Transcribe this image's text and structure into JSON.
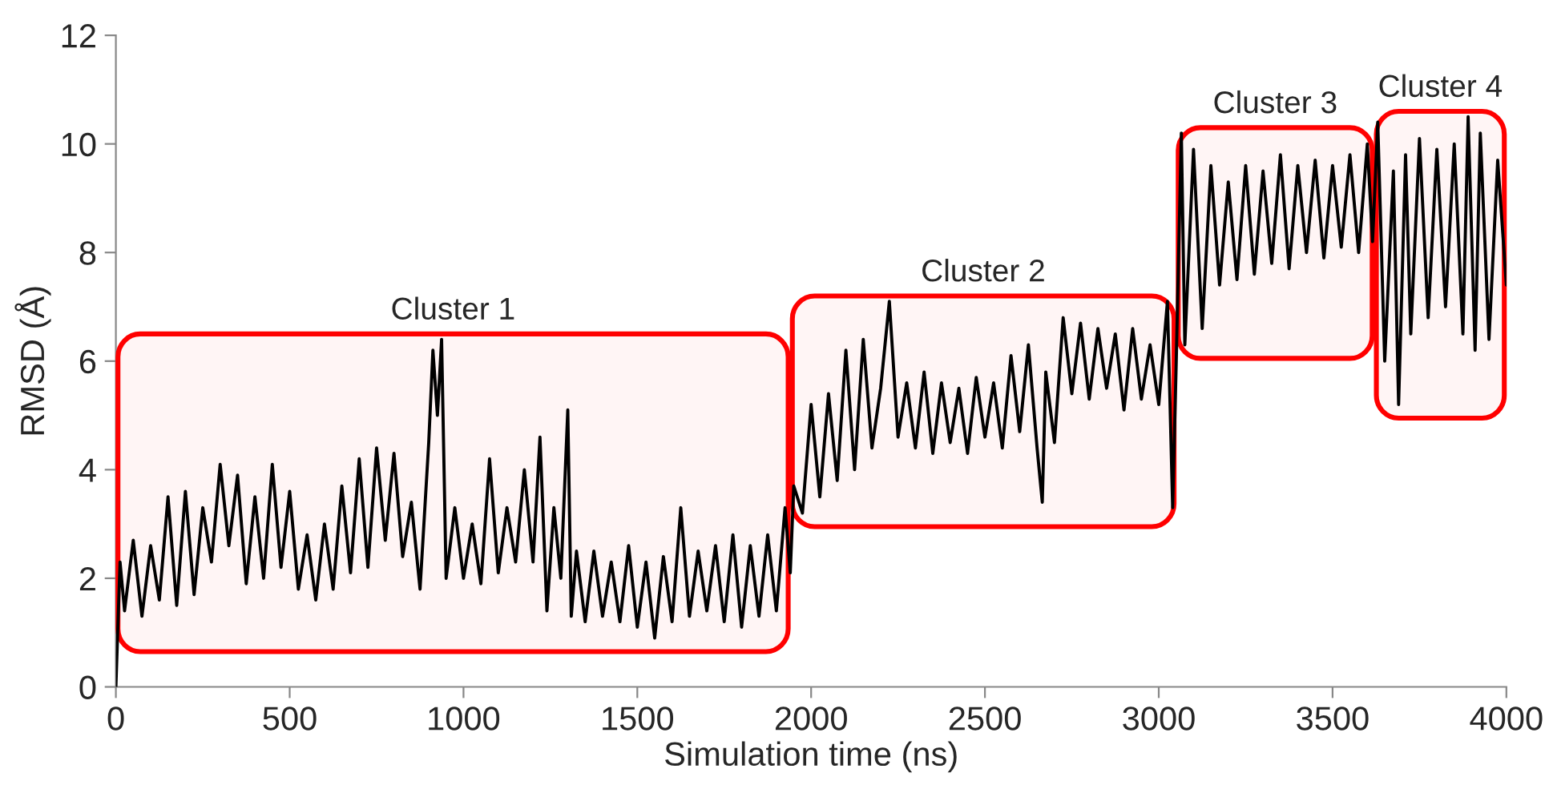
{
  "chart_data": {
    "type": "line",
    "xlabel": "Simulation time (ns)",
    "ylabel": "RMSD (Å)",
    "xlim": [
      0,
      4000
    ],
    "xticks": [
      0,
      500,
      1000,
      1500,
      2000,
      2500,
      3000,
      3500,
      4000
    ],
    "ylim": [
      0,
      12
    ],
    "yticks": [
      0,
      2,
      4,
      6,
      8,
      10,
      12
    ],
    "grid": false,
    "legend": false,
    "bands": [
      {
        "axis": "x",
        "from": 0,
        "to": 1940,
        "label": "Cluster 1",
        "color": "#ff0000"
      },
      {
        "axis": "x",
        "from": 1940,
        "to": 3050,
        "label": "Cluster 2",
        "color": "#ff0000"
      },
      {
        "axis": "x",
        "from": 3050,
        "to": 3620,
        "label": "Cluster 3",
        "color": "#ff0000"
      },
      {
        "axis": "x",
        "from": 3620,
        "to": 4000,
        "label": "Cluster 4",
        "color": "#ff0000"
      }
    ],
    "series": [
      {
        "color": "#000000",
        "x": [
          0,
          12,
          25,
          50,
          75,
          100,
          125,
          150,
          175,
          200,
          225,
          250,
          275,
          300,
          325,
          350,
          375,
          400,
          425,
          450,
          475,
          500,
          525,
          550,
          575,
          600,
          625,
          650,
          675,
          700,
          725,
          750,
          775,
          800,
          825,
          850,
          875,
          900,
          912,
          925,
          937,
          950,
          975,
          1000,
          1025,
          1050,
          1075,
          1100,
          1125,
          1150,
          1175,
          1200,
          1220,
          1240,
          1260,
          1280,
          1300,
          1310,
          1325,
          1350,
          1375,
          1400,
          1425,
          1450,
          1475,
          1500,
          1525,
          1550,
          1575,
          1600,
          1625,
          1650,
          1675,
          1700,
          1725,
          1750,
          1775,
          1800,
          1825,
          1850,
          1875,
          1900,
          1925,
          1940,
          1950,
          1975,
          2000,
          2025,
          2050,
          2075,
          2100,
          2125,
          2150,
          2175,
          2200,
          2225,
          2250,
          2275,
          2300,
          2325,
          2350,
          2375,
          2400,
          2425,
          2450,
          2475,
          2500,
          2525,
          2550,
          2575,
          2600,
          2625,
          2650,
          2665,
          2675,
          2700,
          2725,
          2750,
          2775,
          2800,
          2825,
          2850,
          2875,
          2900,
          2925,
          2950,
          2975,
          3000,
          3025,
          3040,
          3050,
          3065,
          3075,
          3100,
          3125,
          3150,
          3175,
          3200,
          3225,
          3250,
          3275,
          3300,
          3325,
          3350,
          3375,
          3400,
          3425,
          3450,
          3475,
          3500,
          3525,
          3550,
          3575,
          3600,
          3615,
          3630,
          3650,
          3675,
          3690,
          3710,
          3725,
          3750,
          3775,
          3800,
          3825,
          3850,
          3875,
          3890,
          3910,
          3925,
          3950,
          3975,
          4000
        ],
        "values": [
          0,
          2.3,
          1.4,
          2.7,
          1.3,
          2.6,
          1.6,
          3.5,
          1.5,
          3.6,
          1.7,
          3.3,
          2.3,
          4.1,
          2.6,
          3.9,
          1.9,
          3.5,
          2.0,
          4.1,
          2.2,
          3.6,
          1.8,
          2.8,
          1.6,
          3.0,
          1.8,
          3.7,
          2.1,
          4.2,
          2.2,
          4.4,
          2.7,
          4.3,
          2.4,
          3.4,
          1.8,
          4.5,
          6.2,
          5.0,
          6.4,
          2.0,
          3.3,
          2.0,
          3.0,
          1.9,
          4.2,
          2.1,
          3.3,
          2.3,
          4.0,
          2.3,
          4.6,
          1.4,
          3.3,
          2.0,
          5.1,
          1.3,
          2.5,
          1.2,
          2.5,
          1.3,
          2.3,
          1.2,
          2.6,
          1.1,
          2.3,
          0.9,
          2.4,
          1.2,
          3.3,
          1.3,
          2.5,
          1.4,
          2.6,
          1.2,
          2.8,
          1.1,
          2.6,
          1.3,
          2.8,
          1.4,
          3.3,
          2.1,
          3.7,
          3.2,
          5.2,
          3.5,
          5.4,
          3.8,
          6.2,
          4.0,
          6.4,
          4.4,
          5.5,
          7.1,
          4.6,
          5.6,
          4.4,
          5.8,
          4.3,
          5.6,
          4.5,
          5.5,
          4.3,
          5.7,
          4.6,
          5.6,
          4.4,
          6.1,
          4.7,
          6.3,
          4.4,
          3.4,
          5.8,
          4.5,
          6.8,
          5.4,
          6.7,
          5.3,
          6.6,
          5.5,
          6.5,
          5.1,
          6.6,
          5.3,
          6.3,
          5.2,
          7.1,
          3.3,
          5.9,
          10.2,
          6.3,
          9.9,
          6.6,
          9.6,
          7.4,
          9.3,
          7.5,
          9.6,
          7.6,
          9.5,
          7.8,
          9.8,
          7.7,
          9.6,
          8.0,
          9.7,
          7.9,
          9.6,
          8.1,
          9.8,
          8.0,
          10.0,
          8.2,
          10.4,
          6.0,
          9.5,
          5.2,
          9.8,
          6.5,
          10.1,
          6.8,
          9.9,
          7.0,
          10.0,
          6.5,
          10.5,
          6.2,
          10.2,
          6.4,
          9.7,
          7.4
        ]
      }
    ]
  }
}
